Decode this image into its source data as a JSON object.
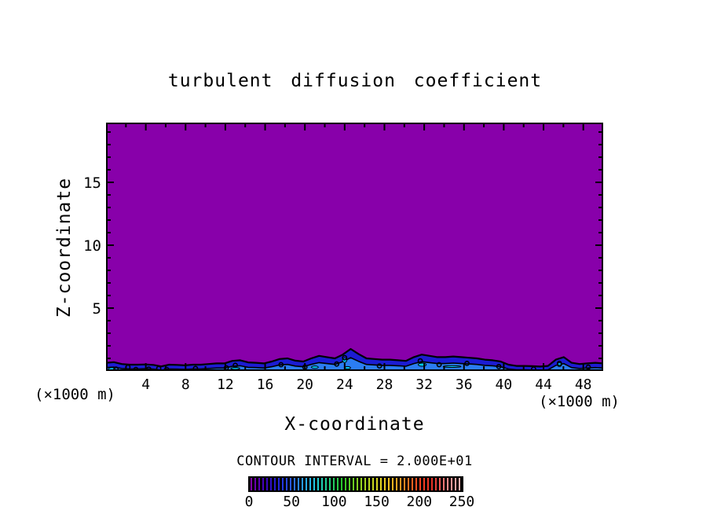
{
  "title": "turbulent diffusion coefficient",
  "axes": {
    "x": {
      "label": "X-coordinate",
      "unit_annotation_right": "(×1000 m)",
      "min": 0,
      "max": 50,
      "major_ticks": [
        4,
        8,
        12,
        16,
        20,
        24,
        28,
        32,
        36,
        40,
        44,
        48
      ],
      "minor_step": 2
    },
    "z": {
      "label": "Z-coordinate",
      "unit_annotation_left": "(×1000 m)",
      "min": 0,
      "max": 19.75,
      "major_ticks": [
        5,
        10,
        15
      ],
      "minor_step": 1
    }
  },
  "contour_note": "CONTOUR INTERVAL = 2.000E+01",
  "colors": {
    "background": "#ffffff",
    "frame": "#000000",
    "field_low": "#8800aa",
    "band": "#1c1cd2",
    "band_inner": "#2b7df2",
    "band_bright": "#00ccff",
    "text": "#000000"
  },
  "colorbar": {
    "min": 0,
    "max": 250,
    "tick_labels": [
      0,
      50,
      100,
      150,
      200,
      250
    ],
    "stripe_count": 54,
    "gradient_stops": [
      "#8000a8",
      "#4000c0",
      "#2020d8",
      "#2858f8",
      "#28a0f8",
      "#20d0e0",
      "#20d080",
      "#28c828",
      "#78d020",
      "#b8d820",
      "#e8d820",
      "#ffb020",
      "#ff7820",
      "#ff4020",
      "#e83028",
      "#ff8888",
      "#ffb0b0"
    ]
  },
  "chart_data": {
    "type": "contour",
    "title": "turbulent diffusion coefficient",
    "xlabel": "X-coordinate",
    "ylabel": "Z-coordinate",
    "x_unit": "×1000 m",
    "z_unit": "×1000 m",
    "x_range": [
      0,
      50
    ],
    "z_range": [
      0,
      19.75
    ],
    "contour_interval": 20,
    "value_range": [
      0,
      250
    ],
    "field_description": "Field is in the lowest contour bin (0-20, purple) everywhere except a shallow turbulent boundary layer along the surface where values reach the 20-60 bins (blue shades with black contour lines and cyan patches).",
    "boundary_layer_top_km": [
      0.65,
      0.7,
      0.55,
      0.5,
      0.5,
      0.52,
      0.48,
      0.36,
      0.5,
      0.48,
      0.45,
      0.5,
      0.5,
      0.55,
      0.6,
      0.6,
      0.8,
      0.85,
      0.68,
      0.65,
      0.6,
      0.75,
      0.95,
      1.0,
      0.82,
      0.75,
      1.0,
      1.2,
      1.1,
      1.0,
      1.3,
      1.75,
      1.35,
      1.0,
      0.95,
      0.9,
      0.9,
      0.85,
      0.8,
      1.1,
      1.3,
      1.2,
      1.1,
      1.1,
      1.15,
      1.1,
      1.05,
      1.0,
      0.9,
      0.85,
      0.75,
      0.5,
      0.4,
      0.4,
      0.38,
      0.35,
      0.4,
      0.9,
      1.1,
      0.65,
      0.55,
      0.6,
      0.65,
      0.6
    ],
    "cyan_patches_km": [
      [
        0.6,
        0.15,
        0.7,
        0.22
      ],
      [
        13.0,
        0.2,
        0.9,
        0.16
      ],
      [
        21.0,
        0.3,
        0.7,
        0.2
      ],
      [
        24.0,
        0.85,
        0.45,
        0.35
      ],
      [
        24.3,
        0.25,
        0.6,
        0.2
      ],
      [
        31.8,
        0.5,
        0.8,
        0.25
      ],
      [
        34.8,
        0.35,
        1.8,
        0.14
      ],
      [
        45.6,
        0.5,
        0.45,
        0.3
      ]
    ],
    "contour_blobs_km": [
      [
        1.0,
        0.15
      ],
      [
        2.2,
        0.3
      ],
      [
        3.0,
        0.12
      ],
      [
        4.3,
        0.15
      ],
      [
        5.3,
        0.2
      ],
      [
        6.1,
        0.12
      ],
      [
        9.0,
        0.2
      ],
      [
        12.1,
        0.25
      ],
      [
        13.0,
        0.45
      ],
      [
        17.6,
        0.5
      ],
      [
        20.0,
        0.3
      ],
      [
        23.2,
        0.55
      ],
      [
        24.0,
        1.05
      ],
      [
        27.5,
        0.4
      ],
      [
        31.6,
        0.8
      ],
      [
        33.5,
        0.5
      ],
      [
        36.3,
        0.6
      ],
      [
        39.5,
        0.35
      ],
      [
        43.0,
        0.15
      ],
      [
        45.6,
        0.6
      ],
      [
        48.5,
        0.3
      ]
    ]
  }
}
